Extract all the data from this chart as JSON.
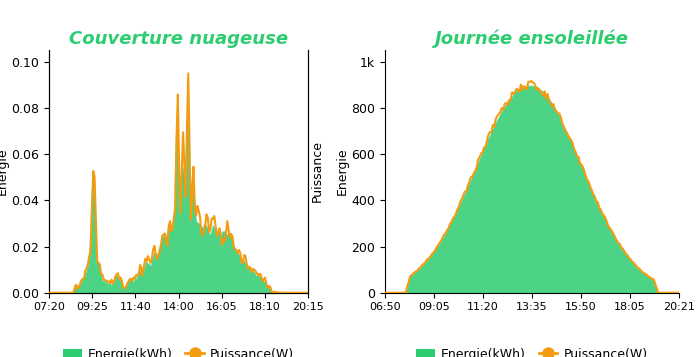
{
  "chart1": {
    "title": "Couverture nuageuse",
    "title_color": "#2ecc71",
    "ylabel_left": "Energie",
    "ylabel_right": "Puissance",
    "xticks": [
      "07:20",
      "09:25",
      "11:40",
      "14:00",
      "16:05",
      "18:10",
      "20:15"
    ],
    "yticks_left": [
      0,
      0.02,
      0.04,
      0.06,
      0.08,
      0.1
    ],
    "ylim_left": [
      0,
      0.105
    ],
    "fill_color": "#2ecc71",
    "line_color": "#f39c12",
    "n_points": 200
  },
  "chart2": {
    "title": "Journée ensoleillée",
    "title_color": "#2ecc71",
    "ylabel_left": "Energie",
    "ylabel_right": "Puissance",
    "xticks": [
      "06:50",
      "09:05",
      "11:20",
      "13:35",
      "15:50",
      "18:05",
      "20:21"
    ],
    "yticks_right": [
      0,
      200,
      400,
      600,
      800,
      "1k"
    ],
    "ylim_right": [
      0,
      1050
    ],
    "fill_color": "#2ecc71",
    "line_color": "#f39c12",
    "n_points": 200
  },
  "legend_fill_color": "#2ecc71",
  "legend_line_color": "#f39c12",
  "legend_label_energy": "Energie(kWh)",
  "legend_label_power": "Puissance(W)",
  "bg_color": "#ffffff",
  "title_fontsize": 13,
  "axis_label_fontsize": 9,
  "tick_fontsize": 9,
  "legend_fontsize": 9
}
